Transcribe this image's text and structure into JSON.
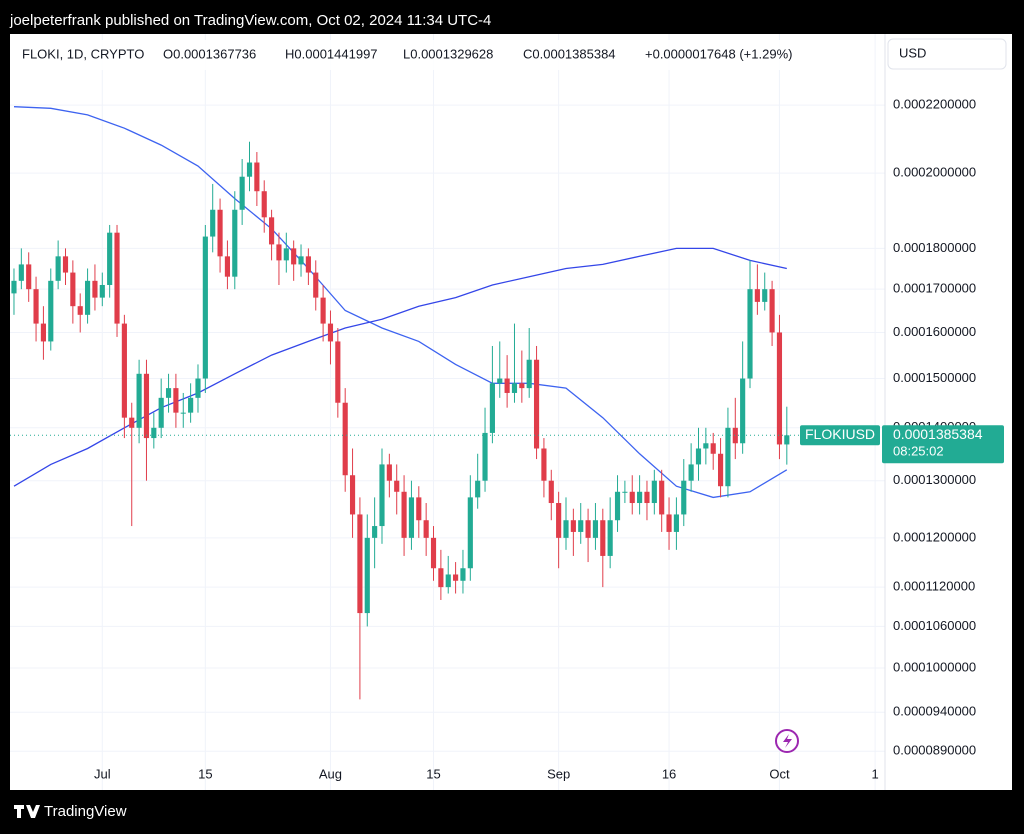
{
  "page": {
    "byline": "joelpeterfrank published on TradingView.com, Oct 02, 2024 11:34 UTC-4",
    "brand": "TradingView"
  },
  "chart_data": {
    "type": "candlestick",
    "header": {
      "symbol": "FLOKI, 1D, CRYPTO",
      "open": "O0.0001367736",
      "high": "H0.0001441997",
      "low": "L0.0001329628",
      "close": "C0.0001385384",
      "change": "+0.0000017648 (+1.29%)"
    },
    "currency": "USD",
    "price_tag": {
      "ticker": "FLOKIUSD",
      "price": "0.0001385384",
      "countdown": "08:25:02"
    },
    "up_color": "#22ab94",
    "down_color": "#e03d4a",
    "log_scale": true,
    "grid": true,
    "open": [
      0.000169,
      0.000172,
      0.000176,
      0.00017,
      0.000162,
      0.000158,
      0.000172,
      0.000178,
      0.000174,
      0.000166,
      0.000164,
      0.000172,
      0.000168,
      0.000171,
      0.000184,
      0.000162,
      0.000142,
      0.00014,
      0.000151,
      0.000138,
      0.00014,
      0.000146,
      0.000148,
      0.000143,
      0.000143,
      0.000146,
      0.00015,
      0.000183,
      0.00019,
      0.000178,
      0.000173,
      0.00019,
      0.000199,
      0.000203,
      0.000195,
      0.000188,
      0.000181,
      0.000177,
      0.00018,
      0.000176,
      0.000178,
      0.000174,
      0.000168,
      0.000162,
      0.000158,
      0.000145,
      0.000131,
      0.000124,
      0.000108,
      0.00012,
      0.000122,
      0.000133,
      0.00013,
      0.000128,
      0.00012,
      0.000127,
      0.000123,
      0.00012,
      0.000115,
      0.000112,
      0.000114,
      0.000113,
      0.000115,
      0.000127,
      0.00013,
      0.000139,
      0.000149,
      0.00015,
      0.000147,
      0.000149,
      0.000148,
      0.000154,
      0.000136,
      0.00013,
      0.000126,
      0.00012,
      0.000123,
      0.000121,
      0.000123,
      0.00012,
      0.000123,
      0.000117,
      0.000123,
      0.000128,
      0.000128,
      0.000126,
      0.000128,
      0.000126,
      0.00013,
      0.000124,
      0.000121,
      0.000124,
      0.00013,
      0.000133,
      0.000136,
      0.000137,
      0.000135,
      0.000129,
      0.00014,
      0.000137,
      0.00015,
      0.00017,
      0.000167,
      0.00017,
      0.00016,
      0.0001367736
    ],
    "high": [
      0.000175,
      0.00018,
      0.000179,
      0.000173,
      0.000166,
      0.000175,
      0.000182,
      0.00018,
      0.000177,
      0.000169,
      0.000175,
      0.000176,
      0.000174,
      0.000186,
      0.000186,
      0.000164,
      0.000145,
      0.000154,
      0.000154,
      0.000143,
      0.00015,
      0.000151,
      0.000151,
      0.000147,
      0.000149,
      0.000153,
      0.000186,
      0.000197,
      0.000193,
      0.000182,
      0.000195,
      0.000204,
      0.000209,
      0.000206,
      0.000198,
      0.00019,
      0.000184,
      0.000184,
      0.000182,
      0.000181,
      0.00018,
      0.000177,
      0.000171,
      0.000165,
      0.000161,
      0.000148,
      0.000136,
      0.000127,
      0.000124,
      0.000127,
      0.000136,
      0.000135,
      0.000133,
      0.000131,
      0.00013,
      0.000129,
      0.000126,
      0.000122,
      0.000118,
      0.000117,
      0.000116,
      0.000118,
      0.000131,
      0.000135,
      0.000144,
      0.000157,
      0.000158,
      0.000155,
      0.000162,
      0.000156,
      0.000161,
      0.000157,
      0.000138,
      0.000132,
      0.000128,
      0.000127,
      0.000125,
      0.000126,
      0.000125,
      0.000126,
      0.000125,
      0.000127,
      0.000131,
      0.00013,
      0.000131,
      0.000131,
      0.00013,
      0.000132,
      0.000132,
      0.000127,
      0.000127,
      0.000134,
      0.000137,
      0.00014,
      0.00014,
      0.000139,
      0.000138,
      0.000144,
      0.000146,
      0.000158,
      0.000177,
      0.000176,
      0.000174,
      0.000172,
      0.000164,
      0.0001441997
    ],
    "low": [
      0.000164,
      0.00017,
      0.000167,
      0.000158,
      0.000154,
      0.000156,
      0.00017,
      0.000171,
      0.000162,
      0.00016,
      0.000162,
      0.000165,
      0.000166,
      0.000168,
      0.000159,
      0.000138,
      0.000122,
      0.000137,
      0.00013,
      0.000136,
      0.000138,
      0.000143,
      0.00014,
      0.00014,
      0.000141,
      0.000143,
      0.000147,
      0.000179,
      0.000174,
      0.00017,
      0.00017,
      0.000186,
      0.000195,
      0.000191,
      0.000184,
      0.000177,
      0.000171,
      0.000174,
      0.000172,
      0.000173,
      0.000171,
      0.000165,
      0.000158,
      0.000153,
      0.000142,
      0.000128,
      0.00012,
      9.57e-05,
      0.000106,
      0.000115,
      0.000119,
      0.000127,
      0.000124,
      0.000117,
      0.000118,
      0.00012,
      0.000117,
      0.000113,
      0.00011,
      0.000111,
      0.000111,
      0.000111,
      0.000113,
      0.000125,
      0.000128,
      0.000137,
      0.000146,
      0.000144,
      0.000145,
      0.000145,
      0.000146,
      0.000134,
      0.000127,
      0.000123,
      0.000115,
      0.000118,
      0.000117,
      0.000119,
      0.000116,
      0.000118,
      0.000112,
      0.000115,
      0.000121,
      0.000126,
      0.000124,
      0.000124,
      0.000123,
      0.000124,
      0.000121,
      0.000118,
      0.000118,
      0.000122,
      0.000128,
      0.00013,
      0.000133,
      0.000132,
      0.000127,
      0.000127,
      0.000134,
      0.000135,
      0.000148,
      0.000164,
      0.000165,
      0.000157,
      0.000134,
      0.0001329628
    ],
    "close": [
      0.000172,
      0.000176,
      0.00017,
      0.000162,
      0.000158,
      0.000172,
      0.000178,
      0.000174,
      0.000166,
      0.000164,
      0.000172,
      0.000168,
      0.000171,
      0.000184,
      0.000162,
      0.000142,
      0.00014,
      0.000151,
      0.000138,
      0.00014,
      0.000146,
      0.000148,
      0.000143,
      0.000143,
      0.000146,
      0.00015,
      0.000183,
      0.00019,
      0.000178,
      0.000173,
      0.00019,
      0.000199,
      0.000203,
      0.000195,
      0.000188,
      0.000181,
      0.000177,
      0.00018,
      0.000176,
      0.000178,
      0.000174,
      0.000168,
      0.000162,
      0.000158,
      0.000145,
      0.000131,
      0.000124,
      0.000108,
      0.00012,
      0.000122,
      0.000133,
      0.00013,
      0.000128,
      0.00012,
      0.000127,
      0.000123,
      0.00012,
      0.000115,
      0.000112,
      0.000114,
      0.000113,
      0.000115,
      0.000127,
      0.00013,
      0.000139,
      0.000149,
      0.00015,
      0.000147,
      0.000149,
      0.000148,
      0.000154,
      0.000136,
      0.00013,
      0.000126,
      0.00012,
      0.000123,
      0.000121,
      0.000123,
      0.00012,
      0.000123,
      0.000117,
      0.000123,
      0.000128,
      0.000128,
      0.000126,
      0.000128,
      0.000126,
      0.00013,
      0.000124,
      0.000121,
      0.000124,
      0.00013,
      0.000133,
      0.000136,
      0.000137,
      0.000135,
      0.000129,
      0.00014,
      0.000137,
      0.00015,
      0.00017,
      0.000167,
      0.00017,
      0.00016,
      0.0001367736,
      0.0001385384
    ],
    "lines": [
      {
        "color": "#3d63f0",
        "x": [
          0,
          5,
          10,
          15,
          20,
          25,
          30,
          35,
          40,
          45,
          50,
          55,
          60,
          65,
          70,
          75,
          80,
          85,
          90,
          95,
          100,
          105
        ],
        "values": [
          0.0002195,
          0.000219,
          0.000217,
          0.000213,
          0.000208,
          0.000202,
          0.000193,
          0.000185,
          0.000175,
          0.000165,
          0.000161,
          0.000158,
          0.000153,
          0.000149,
          0.000149,
          0.000148,
          0.000142,
          0.000135,
          0.000129,
          0.000127,
          0.000128,
          0.000132
        ]
      },
      {
        "color": "#3446e8",
        "x": [
          0,
          5,
          10,
          15,
          20,
          25,
          30,
          35,
          40,
          45,
          50,
          55,
          60,
          65,
          70,
          75,
          80,
          85,
          90,
          95,
          100,
          105
        ],
        "values": [
          0.000129,
          0.000133,
          0.000136,
          0.00014,
          0.000144,
          0.000147,
          0.000151,
          0.000155,
          0.000158,
          0.000161,
          0.000163,
          0.000166,
          0.000168,
          0.000171,
          0.000173,
          0.000175,
          0.000176,
          0.000178,
          0.00018,
          0.00018,
          0.000177,
          0.000175
        ]
      }
    ],
    "xlim": [
      -0.54,
      118.34
    ],
    "xticks": [
      {
        "value": 12,
        "label": "Jul"
      },
      {
        "value": 26,
        "label": "15"
      },
      {
        "value": 43,
        "label": "Aug"
      },
      {
        "value": 57,
        "label": "15"
      },
      {
        "value": 74,
        "label": "Sep"
      },
      {
        "value": 89,
        "label": "16"
      },
      {
        "value": 104,
        "label": "Oct"
      },
      {
        "value": 117,
        "label": "1"
      }
    ],
    "ylim": [
      8.73e-05,
      0.000241
    ],
    "yticks": [
      {
        "value": 0.00022,
        "label": "0.0002200000"
      },
      {
        "value": 0.0002,
        "label": "0.0002000000"
      },
      {
        "value": 0.00018,
        "label": "0.0001800000"
      },
      {
        "value": 0.00017,
        "label": "0.0001700000"
      },
      {
        "value": 0.00016,
        "label": "0.0001600000"
      },
      {
        "value": 0.00015,
        "label": "0.0001500000"
      },
      {
        "value": 0.00014,
        "label": "0.0001400000"
      },
      {
        "value": 0.00013,
        "label": "0.0001300000"
      },
      {
        "value": 0.00012,
        "label": "0.0001200000"
      },
      {
        "value": 0.000112,
        "label": "0.0001120000"
      },
      {
        "value": 0.000106,
        "label": "0.0001060000"
      },
      {
        "value": 0.0001,
        "label": "0.0001000000"
      },
      {
        "value": 9.4e-05,
        "label": "0.0000940000"
      },
      {
        "value": 8.9e-05,
        "label": "0.0000890000"
      }
    ]
  }
}
